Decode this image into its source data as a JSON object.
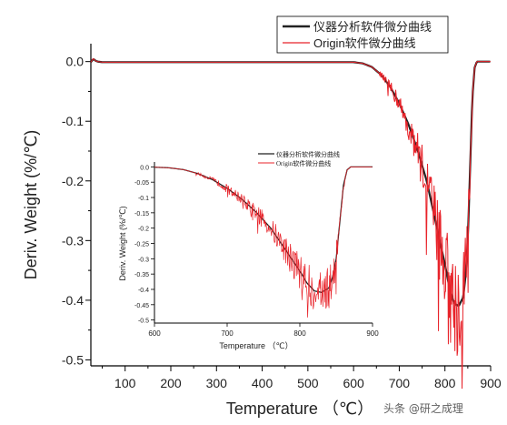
{
  "colors": {
    "device_curve": "#222222",
    "origin_curve": "#e8232a",
    "axis": "#000000"
  },
  "legend": {
    "device_label": "仪器分析软件微分曲线",
    "origin_label": "Origin软件微分曲线"
  },
  "watermark": "头条 @研之成理",
  "chart_data": [
    {
      "type": "line",
      "xlabel": "Temperature （℃）",
      "ylabel": "Deriv. Weight (%/℃)",
      "xlim": [
        25,
        900
      ],
      "ylim": [
        -0.51,
        0.03
      ],
      "xticks": [
        100,
        200,
        300,
        400,
        500,
        600,
        700,
        800,
        900
      ],
      "yticks": [
        0.0,
        -0.1,
        -0.2,
        -0.3,
        -0.4,
        -0.5
      ],
      "ytick_labels": [
        "0.0",
        "-0.1",
        "-0.2",
        "-0.3",
        "-0.4",
        "-0.5"
      ],
      "legend_position": "top-right",
      "series": [
        {
          "name": "仪器分析软件微分曲线",
          "x": [
            25,
            30,
            33,
            36,
            40,
            50,
            100,
            200,
            300,
            400,
            500,
            560,
            600,
            620,
            640,
            660,
            680,
            700,
            720,
            740,
            760,
            780,
            800,
            810,
            820,
            830,
            840,
            845,
            850,
            855,
            860,
            865,
            870,
            880,
            890,
            900
          ],
          "y": [
            -0.001,
            0.004,
            0.003,
            0.001,
            0.0,
            -0.001,
            -0.001,
            -0.001,
            -0.001,
            -0.001,
            -0.001,
            -0.001,
            -0.001,
            -0.003,
            -0.009,
            -0.022,
            -0.042,
            -0.07,
            -0.105,
            -0.148,
            -0.2,
            -0.27,
            -0.34,
            -0.38,
            -0.405,
            -0.41,
            -0.395,
            -0.36,
            -0.3,
            -0.18,
            -0.06,
            -0.01,
            0.0,
            0.0,
            0.0,
            0.0
          ]
        },
        {
          "name": "Origin软件微分曲线",
          "x": [
            25,
            30,
            33,
            36,
            40,
            50,
            100,
            200,
            300,
            400,
            500,
            560,
            600,
            620,
            640,
            660,
            680,
            700,
            720,
            740,
            760,
            780,
            800,
            810,
            820,
            830,
            840,
            845,
            850,
            855,
            860,
            865,
            870,
            880,
            890,
            900
          ],
          "y": [
            -0.001,
            0.005,
            0.003,
            0.001,
            0.0,
            -0.001,
            -0.001,
            -0.001,
            -0.001,
            -0.001,
            -0.001,
            -0.001,
            -0.001,
            -0.003,
            -0.009,
            -0.022,
            -0.042,
            -0.07,
            -0.105,
            -0.148,
            -0.2,
            -0.27,
            -0.34,
            -0.38,
            -0.405,
            -0.41,
            -0.395,
            -0.36,
            -0.3,
            -0.18,
            -0.06,
            -0.01,
            0.0,
            0.0,
            0.0,
            0.0
          ],
          "noisy": true
        }
      ]
    },
    {
      "type": "line",
      "xlabel": "Temperature （℃）",
      "ylabel": "Deriv. Weight (%/℃)",
      "xlim": [
        600,
        900
      ],
      "ylim": [
        -0.51,
        0.01
      ],
      "xticks": [
        600,
        700,
        800,
        900
      ],
      "yticks": [
        0.0,
        -0.05,
        -0.1,
        -0.15,
        -0.2,
        -0.25,
        -0.3,
        -0.35,
        -0.4,
        -0.45,
        -0.5
      ],
      "ytick_labels": [
        "0.0",
        "-0.05",
        "-0.1",
        "-0.15",
        "-0.2",
        "-0.25",
        "-0.3",
        "-0.35",
        "-0.4",
        "-0.45",
        "-0.5"
      ],
      "legend_position": "top-right",
      "series": [
        {
          "name": "仪器分析软件微分曲线",
          "x": [
            600,
            620,
            640,
            660,
            680,
            700,
            720,
            740,
            760,
            780,
            800,
            810,
            820,
            830,
            840,
            845,
            850,
            855,
            860,
            865,
            870,
            880,
            890,
            900
          ],
          "y": [
            -0.001,
            -0.003,
            -0.009,
            -0.022,
            -0.042,
            -0.07,
            -0.105,
            -0.148,
            -0.2,
            -0.27,
            -0.34,
            -0.38,
            -0.405,
            -0.41,
            -0.395,
            -0.36,
            -0.3,
            -0.18,
            -0.06,
            -0.01,
            0.0,
            0.0,
            0.0,
            0.0
          ]
        },
        {
          "name": "Origin软件微分曲线",
          "x": [
            600,
            620,
            640,
            660,
            680,
            700,
            720,
            740,
            760,
            780,
            800,
            810,
            820,
            830,
            840,
            845,
            850,
            855,
            860,
            865,
            870,
            880,
            890,
            900
          ],
          "y": [
            -0.001,
            -0.003,
            -0.009,
            -0.022,
            -0.042,
            -0.07,
            -0.105,
            -0.148,
            -0.2,
            -0.27,
            -0.34,
            -0.38,
            -0.405,
            -0.41,
            -0.395,
            -0.36,
            -0.3,
            -0.18,
            -0.06,
            -0.01,
            0.0,
            0.0,
            0.0,
            0.0
          ],
          "noisy": true
        }
      ]
    }
  ]
}
